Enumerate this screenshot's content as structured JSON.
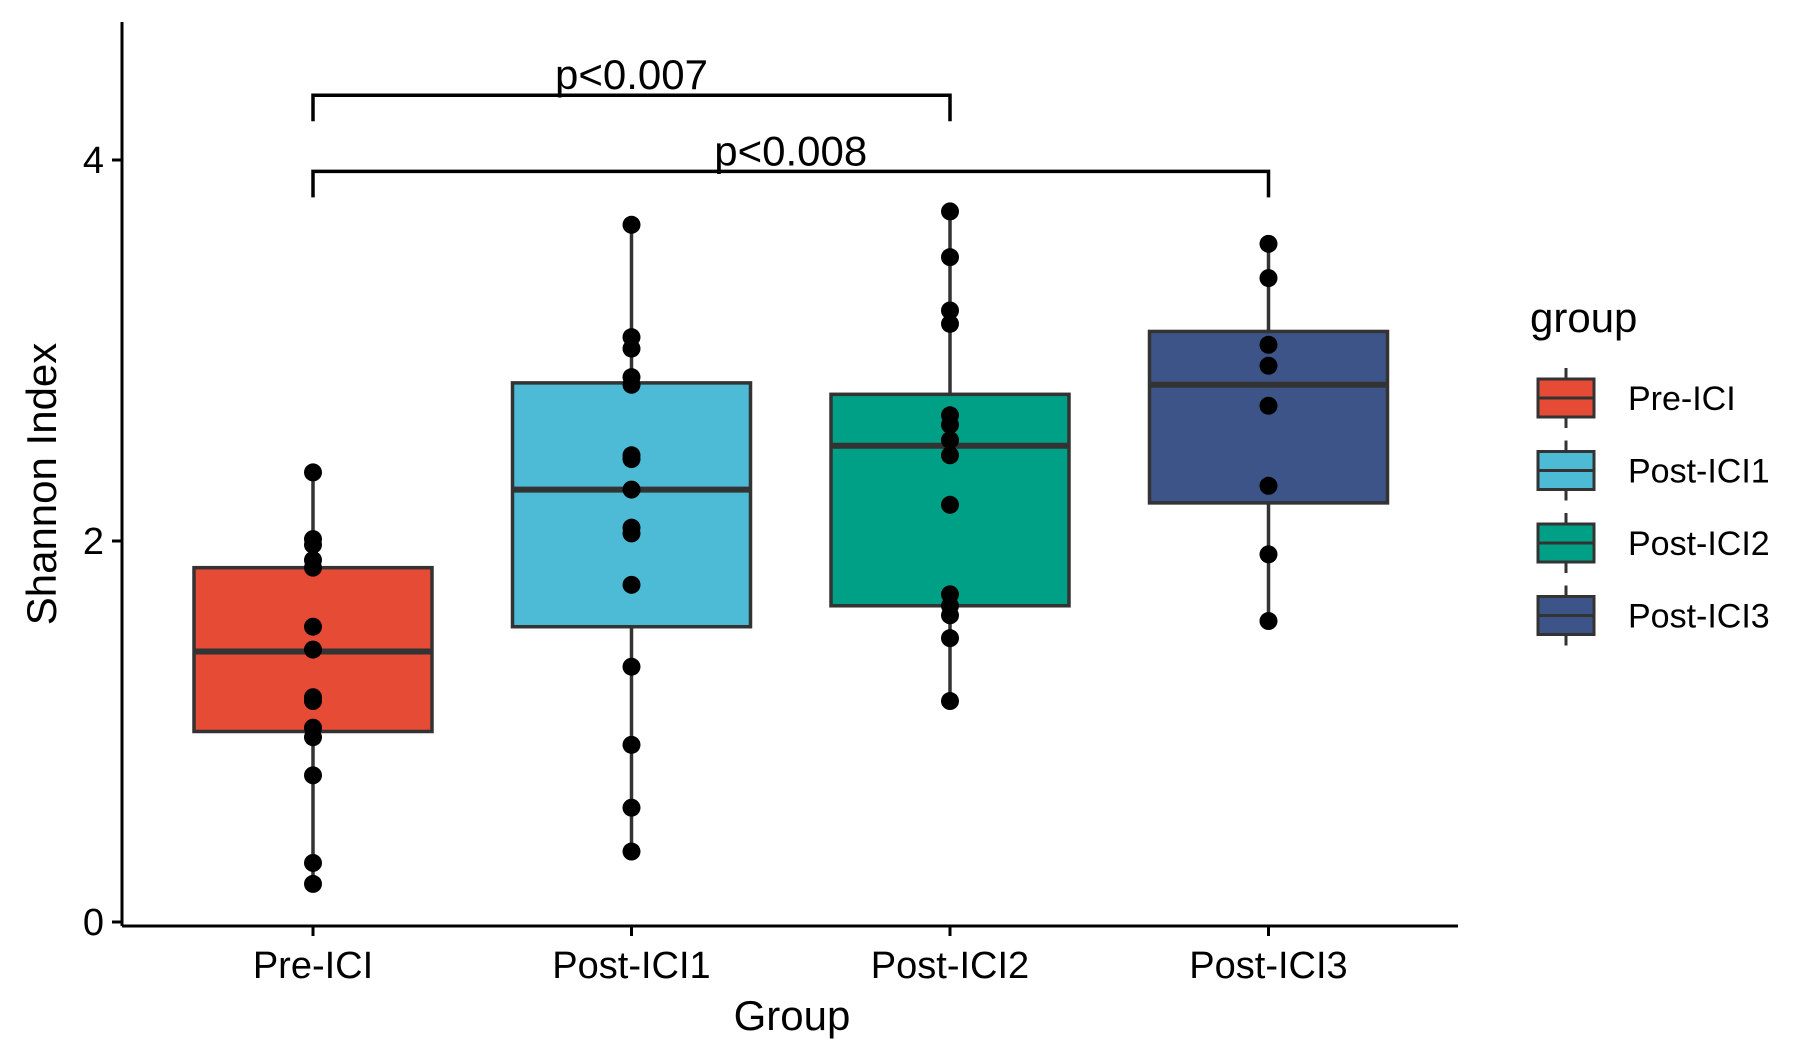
{
  "chart_data": {
    "type": "box",
    "xlabel": "Group",
    "ylabel": "Shannon Index",
    "ylim": [
      0,
      4.7
    ],
    "yticks": [
      0,
      2,
      4
    ],
    "categories": [
      "Pre-ICI",
      "Post-ICI1",
      "Post-ICI2",
      "Post-ICI3"
    ],
    "legend": {
      "title": "group",
      "placement": "right",
      "items": [
        "Pre-ICI",
        "Post-ICI1",
        "Post-ICI2",
        "Post-ICI3"
      ]
    },
    "colors": [
      "#E64B35",
      "#4DBBD5",
      "#00A087",
      "#3C5488"
    ],
    "box_outline_color": "#333333",
    "boxes": [
      {
        "group": "Pre-ICI",
        "whisker_low": 0.2,
        "q1": 1.0,
        "median": 1.42,
        "q3": 1.86,
        "whisker_high": 2.36
      },
      {
        "group": "Post-ICI1",
        "whisker_low": 0.37,
        "q1": 1.55,
        "median": 2.27,
        "q3": 2.83,
        "whisker_high": 3.66
      },
      {
        "group": "Post-ICI2",
        "whisker_low": 1.16,
        "q1": 1.66,
        "median": 2.5,
        "q3": 2.77,
        "whisker_high": 3.73
      },
      {
        "group": "Post-ICI3",
        "whisker_low": 1.58,
        "q1": 2.2,
        "median": 2.82,
        "q3": 3.1,
        "whisker_high": 3.56
      }
    ],
    "points": [
      {
        "group": "Pre-ICI",
        "values": [
          2.36,
          2.01,
          1.98,
          1.9,
          1.86,
          1.55,
          1.43,
          1.18,
          1.16,
          1.02,
          0.97,
          0.77,
          0.31,
          0.2
        ]
      },
      {
        "group": "Post-ICI1",
        "values": [
          3.66,
          3.07,
          3.01,
          2.86,
          2.82,
          2.45,
          2.43,
          2.27,
          2.07,
          2.04,
          1.77,
          1.34,
          0.93,
          0.6,
          0.37
        ]
      },
      {
        "group": "Post-ICI2",
        "values": [
          3.73,
          3.49,
          3.21,
          3.14,
          2.66,
          2.61,
          2.53,
          2.45,
          2.19,
          1.72,
          1.66,
          1.61,
          1.49,
          1.16
        ]
      },
      {
        "group": "Post-ICI3",
        "values": [
          3.56,
          3.38,
          3.03,
          2.92,
          2.71,
          2.29,
          1.93,
          1.58
        ]
      }
    ],
    "annotations": [
      {
        "label": "p<0.007",
        "from": "Pre-ICI",
        "to": "Post-ICI2",
        "y": 4.34
      },
      {
        "label": "p<0.008",
        "from": "Pre-ICI",
        "to": "Post-ICI3",
        "y": 3.94
      }
    ]
  }
}
